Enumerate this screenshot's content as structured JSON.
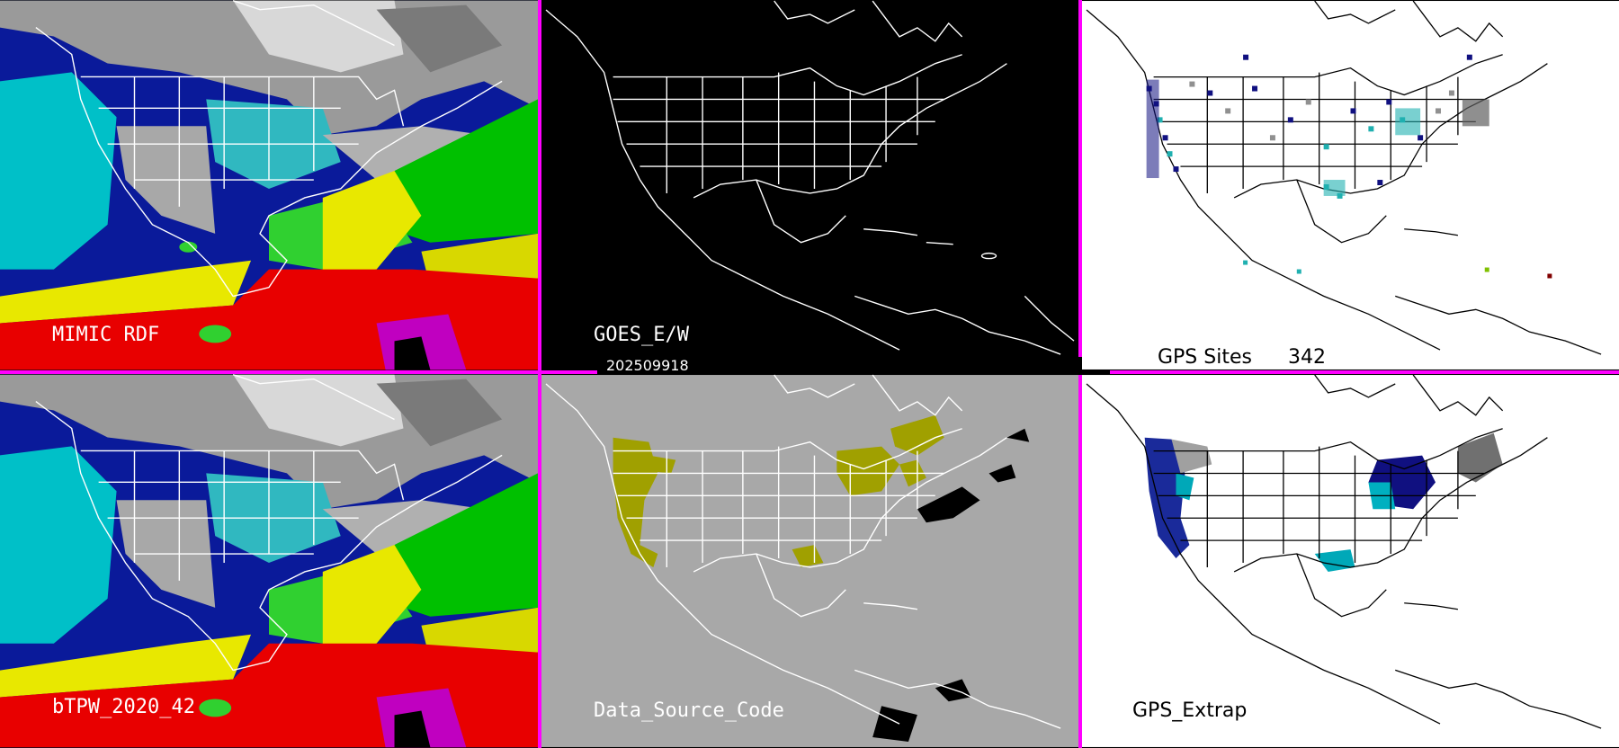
{
  "panels": {
    "mimic_rdf": {
      "label": "MIMIC RDF"
    },
    "goes": {
      "label": "GOES_E/W"
    },
    "gps_sites": {
      "label": "GPS Sites",
      "count": "342"
    },
    "btpw": {
      "label": "bTPW_2020_42"
    },
    "data_source": {
      "label": "Data_Source_Code"
    },
    "gps_extrap": {
      "label": "GPS_Extrap"
    }
  },
  "timestamp": "202509918",
  "colors": {
    "divider": "#ff00ff",
    "tpw_low": "#1a1aa0",
    "tpw_mid": "#00c8c8",
    "tpw_high": "#ff0000",
    "data_source_fill": "#a0a000",
    "gps_site_dark": "#101080",
    "gps_site_teal": "#20b0b0",
    "gps_site_gray": "#909090"
  }
}
